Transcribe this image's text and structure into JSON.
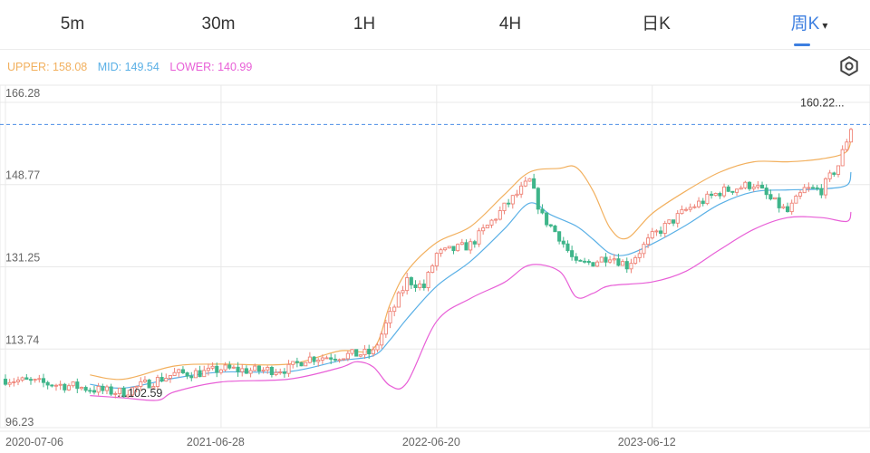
{
  "tabs": [
    {
      "id": "5m",
      "label": "5m",
      "active": false
    },
    {
      "id": "30m",
      "label": "30m",
      "active": false
    },
    {
      "id": "1h",
      "label": "1H",
      "active": false
    },
    {
      "id": "4h",
      "label": "4H",
      "active": false
    },
    {
      "id": "day",
      "label": "日K",
      "active": false
    },
    {
      "id": "week",
      "label": "周K",
      "active": true
    }
  ],
  "tab_caret": "▾",
  "legend": {
    "upper": "UPPER: 158.08",
    "mid": "MID: 149.54",
    "lower": "LOWER: 140.99"
  },
  "colors": {
    "accent": "#3d7fe0",
    "upper": "#f2b05e",
    "mid": "#5ab0e6",
    "lower": "#e85fd7",
    "up": "#ef8377",
    "down": "#3fb58a",
    "grid": "#e8e8e8",
    "price_line": "#4d8fe6",
    "axis_text": "#666666"
  },
  "settings_icon": "gear-icon",
  "chart_data": {
    "type": "candlestick",
    "indicator": "Bollinger Bands",
    "title": "",
    "xlabel": "",
    "ylabel": "",
    "y_ticks": [
      "166.28",
      "148.77",
      "131.25",
      "113.74",
      "96.23"
    ],
    "y_tick_values": [
      166.28,
      148.77,
      131.25,
      113.74,
      96.23
    ],
    "ylim": [
      96.23,
      166.28
    ],
    "x_ticks": [
      "2020-07-06",
      "2021-06-28",
      "2022-06-20",
      "2023-06-12"
    ],
    "x_range": [
      "2020-07-06",
      "2024-05-06"
    ],
    "grid": true,
    "current_price_label": "160.22...",
    "current_price": 160.22,
    "max_label": "160.22...",
    "min_label": "102.59",
    "min_value": 102.59,
    "close_anchors": [
      {
        "date": "2020-07-06",
        "close": 105.4
      },
      {
        "date": "2020-08-31",
        "close": 104.6
      },
      {
        "date": "2020-10-26",
        "close": 103.9
      },
      {
        "date": "2020-12-21",
        "close": 102.8
      },
      {
        "date": "2021-01-18",
        "close": 102.6
      },
      {
        "date": "2021-02-15",
        "close": 104.0
      },
      {
        "date": "2021-04-12",
        "close": 106.5
      },
      {
        "date": "2021-06-07",
        "close": 106.9
      },
      {
        "date": "2021-06-28",
        "close": 107.6
      },
      {
        "date": "2021-08-23",
        "close": 107.2
      },
      {
        "date": "2021-10-18",
        "close": 107.6
      },
      {
        "date": "2021-11-15",
        "close": 109.8
      },
      {
        "date": "2022-01-10",
        "close": 110.4
      },
      {
        "date": "2022-03-07",
        "close": 111.0
      },
      {
        "date": "2022-04-04",
        "close": 119.0
      },
      {
        "date": "2022-05-02",
        "close": 126.5
      },
      {
        "date": "2022-05-30",
        "close": 125.0
      },
      {
        "date": "2022-06-20",
        "close": 132.0
      },
      {
        "date": "2022-08-15",
        "close": 134.0
      },
      {
        "date": "2022-10-10",
        "close": 142.0
      },
      {
        "date": "2022-11-21",
        "close": 147.6
      },
      {
        "date": "2022-12-12",
        "close": 140.0
      },
      {
        "date": "2023-01-09",
        "close": 135.8
      },
      {
        "date": "2023-02-06",
        "close": 129.7
      },
      {
        "date": "2023-03-06",
        "close": 130.3
      },
      {
        "date": "2023-04-03",
        "close": 131.8
      },
      {
        "date": "2023-05-01",
        "close": 129.6
      },
      {
        "date": "2023-06-12",
        "close": 135.8
      },
      {
        "date": "2023-08-07",
        "close": 141.4
      },
      {
        "date": "2023-10-02",
        "close": 145.3
      },
      {
        "date": "2023-11-27",
        "close": 147.0
      },
      {
        "date": "2023-12-25",
        "close": 143.6
      },
      {
        "date": "2024-01-22",
        "close": 141.0
      },
      {
        "date": "2024-02-19",
        "close": 145.8
      },
      {
        "date": "2024-03-18",
        "close": 145.7
      },
      {
        "date": "2024-04-15",
        "close": 151.0
      },
      {
        "date": "2024-05-06",
        "close": 159.0
      }
    ],
    "bands": {
      "upper": [
        {
          "date": "2020-11-23",
          "value": 106.3
        },
        {
          "date": "2021-01-18",
          "value": 105.4
        },
        {
          "date": "2021-04-12",
          "value": 108.2
        },
        {
          "date": "2021-06-28",
          "value": 108.6
        },
        {
          "date": "2021-10-18",
          "value": 108.6
        },
        {
          "date": "2022-01-10",
          "value": 111.4
        },
        {
          "date": "2022-03-07",
          "value": 111.9
        },
        {
          "date": "2022-04-04",
          "value": 121.4
        },
        {
          "date": "2022-05-02",
          "value": 128.4
        },
        {
          "date": "2022-06-20",
          "value": 134.5
        },
        {
          "date": "2022-08-15",
          "value": 137.9
        },
        {
          "date": "2022-10-10",
          "value": 144.7
        },
        {
          "date": "2022-11-21",
          "value": 149.5
        },
        {
          "date": "2023-01-09",
          "value": 150.3
        },
        {
          "date": "2023-02-06",
          "value": 150.5
        },
        {
          "date": "2023-03-06",
          "value": 145.5
        },
        {
          "date": "2023-04-03",
          "value": 137.6
        },
        {
          "date": "2023-05-01",
          "value": 135.4
        },
        {
          "date": "2023-06-12",
          "value": 140.7
        },
        {
          "date": "2023-08-07",
          "value": 145.5
        },
        {
          "date": "2023-10-02",
          "value": 149.5
        },
        {
          "date": "2023-11-27",
          "value": 151.7
        },
        {
          "date": "2024-01-22",
          "value": 151.7
        },
        {
          "date": "2024-03-18",
          "value": 152.3
        },
        {
          "date": "2024-04-29",
          "value": 153.9
        },
        {
          "date": "2024-05-06",
          "value": 158.1
        }
      ],
      "mid": [
        {
          "date": "2020-11-23",
          "value": 104.3
        },
        {
          "date": "2021-01-18",
          "value": 103.5
        },
        {
          "date": "2021-04-12",
          "value": 105.6
        },
        {
          "date": "2021-06-28",
          "value": 106.9
        },
        {
          "date": "2021-10-18",
          "value": 107.0
        },
        {
          "date": "2022-01-10",
          "value": 109.3
        },
        {
          "date": "2022-03-07",
          "value": 110.4
        },
        {
          "date": "2022-04-04",
          "value": 113.8
        },
        {
          "date": "2022-05-02",
          "value": 118.3
        },
        {
          "date": "2022-06-20",
          "value": 125.2
        },
        {
          "date": "2022-08-15",
          "value": 130.5
        },
        {
          "date": "2022-10-10",
          "value": 137.4
        },
        {
          "date": "2022-11-21",
          "value": 142.9
        },
        {
          "date": "2022-12-26",
          "value": 140.4
        },
        {
          "date": "2023-02-06",
          "value": 138.0
        },
        {
          "date": "2023-03-06",
          "value": 135.2
        },
        {
          "date": "2023-04-03",
          "value": 132.2
        },
        {
          "date": "2023-05-01",
          "value": 131.9
        },
        {
          "date": "2023-06-12",
          "value": 134.2
        },
        {
          "date": "2023-08-07",
          "value": 138.2
        },
        {
          "date": "2023-10-02",
          "value": 142.7
        },
        {
          "date": "2023-11-27",
          "value": 145.3
        },
        {
          "date": "2024-01-22",
          "value": 145.7
        },
        {
          "date": "2024-03-18",
          "value": 145.9
        },
        {
          "date": "2024-04-29",
          "value": 146.7
        },
        {
          "date": "2024-05-06",
          "value": 149.5
        }
      ],
      "lower": [
        {
          "date": "2020-11-23",
          "value": 101.9
        },
        {
          "date": "2021-01-18",
          "value": 101.4
        },
        {
          "date": "2021-03-15",
          "value": 100.9
        },
        {
          "date": "2021-04-12",
          "value": 102.7
        },
        {
          "date": "2021-06-28",
          "value": 104.8
        },
        {
          "date": "2021-10-18",
          "value": 105.4
        },
        {
          "date": "2022-01-10",
          "value": 107.8
        },
        {
          "date": "2022-02-07",
          "value": 109.1
        },
        {
          "date": "2022-03-07",
          "value": 108.0
        },
        {
          "date": "2022-04-04",
          "value": 104.0
        },
        {
          "date": "2022-05-02",
          "value": 104.7
        },
        {
          "date": "2022-06-20",
          "value": 117.7
        },
        {
          "date": "2022-08-15",
          "value": 122.6
        },
        {
          "date": "2022-10-10",
          "value": 126.0
        },
        {
          "date": "2022-11-21",
          "value": 129.7
        },
        {
          "date": "2023-01-09",
          "value": 128.4
        },
        {
          "date": "2023-02-06",
          "value": 122.9
        },
        {
          "date": "2023-03-06",
          "value": 123.7
        },
        {
          "date": "2023-04-03",
          "value": 125.3
        },
        {
          "date": "2023-06-12",
          "value": 126.1
        },
        {
          "date": "2023-08-07",
          "value": 128.4
        },
        {
          "date": "2023-10-02",
          "value": 133.0
        },
        {
          "date": "2023-11-27",
          "value": 137.3
        },
        {
          "date": "2024-01-22",
          "value": 139.8
        },
        {
          "date": "2024-03-18",
          "value": 139.8
        },
        {
          "date": "2024-04-29",
          "value": 139.0
        },
        {
          "date": "2024-05-06",
          "value": 141.0
        }
      ]
    }
  }
}
